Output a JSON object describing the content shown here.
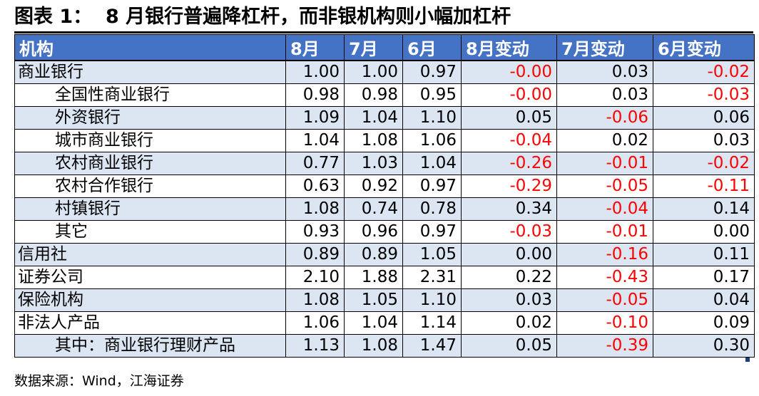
{
  "title": "图表 1：  8 月银行普遍降杠杆，而非银机构则小幅加杠杆",
  "table": {
    "headers": [
      "机构",
      "8月",
      "7月",
      "6月",
      "8月变动",
      "7月变动",
      "6月变动"
    ],
    "rows": [
      {
        "label": "商业银行",
        "indent": false,
        "values": [
          "1.00",
          "1.00",
          "0.97",
          "-0.00",
          "0.03",
          "-0.02"
        ]
      },
      {
        "label": "全国性商业银行",
        "indent": true,
        "values": [
          "0.98",
          "0.98",
          "0.95",
          "-0.00",
          "0.03",
          "-0.03"
        ]
      },
      {
        "label": "外资银行",
        "indent": true,
        "values": [
          "1.09",
          "1.04",
          "1.10",
          "0.05",
          "-0.06",
          "0.06"
        ]
      },
      {
        "label": "城市商业银行",
        "indent": true,
        "values": [
          "1.04",
          "1.08",
          "1.06",
          "-0.04",
          "0.02",
          "0.03"
        ]
      },
      {
        "label": "农村商业银行",
        "indent": true,
        "values": [
          "0.77",
          "1.03",
          "1.04",
          "-0.26",
          "-0.01",
          "-0.02"
        ]
      },
      {
        "label": "农村合作银行",
        "indent": true,
        "values": [
          "0.63",
          "0.92",
          "0.97",
          "-0.29",
          "-0.05",
          "-0.11"
        ]
      },
      {
        "label": "村镇银行",
        "indent": true,
        "values": [
          "1.08",
          "0.74",
          "0.78",
          "0.34",
          "-0.04",
          "0.14"
        ]
      },
      {
        "label": "其它",
        "indent": true,
        "values": [
          "0.93",
          "0.96",
          "0.97",
          "-0.03",
          "-0.01",
          "0.00"
        ]
      },
      {
        "label": "信用社",
        "indent": false,
        "values": [
          "0.89",
          "0.89",
          "1.05",
          "0.00",
          "-0.16",
          "0.11"
        ]
      },
      {
        "label": "证券公司",
        "indent": false,
        "values": [
          "2.10",
          "1.88",
          "2.31",
          "0.22",
          "-0.43",
          "0.17"
        ]
      },
      {
        "label": "保险机构",
        "indent": false,
        "values": [
          "1.08",
          "1.05",
          "1.10",
          "0.03",
          "-0.05",
          "0.04"
        ]
      },
      {
        "label": "非法人产品",
        "indent": false,
        "values": [
          "1.06",
          "1.04",
          "1.14",
          "0.02",
          "-0.10",
          "0.09"
        ]
      },
      {
        "label": "其中：商业银行理财产品",
        "indent": true,
        "values": [
          "1.13",
          "1.08",
          "1.47",
          "0.05",
          "-0.39",
          "0.30"
        ]
      }
    ]
  },
  "colors": {
    "header_bg": "#4472c4",
    "header_text": "#ffffff",
    "row_shade": "#dce6f2",
    "negative": "#ff0000"
  },
  "source": "数据来源：Wind，江海证券"
}
